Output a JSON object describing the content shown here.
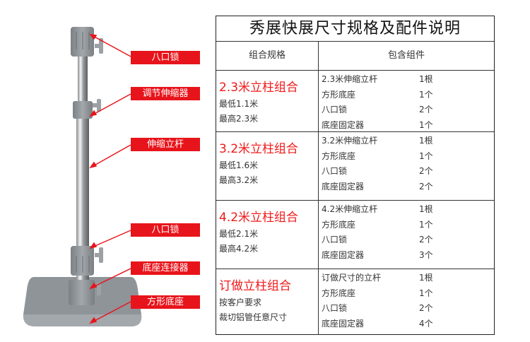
{
  "labels": [
    "八口锁",
    "调节伸缩器",
    "伸缩立杆",
    "八口锁",
    "底座连接器",
    "方形底座"
  ],
  "table": {
    "title": "秀展快展尺寸规格及配件说明",
    "headers": [
      "组合规格",
      "包含组件"
    ],
    "rows": [
      {
        "spec": "2.3米立柱组合",
        "lines": [
          "最低1.1米",
          "最高2.3米"
        ],
        "items": [
          {
            "name": "2.3米伸缩立杆",
            "qty": "1根"
          },
          {
            "name": "方形底座",
            "qty": "1个"
          },
          {
            "name": "八口锁",
            "qty": "2个"
          },
          {
            "name": "底座固定器",
            "qty": "1个"
          }
        ]
      },
      {
        "spec": "3.2米立柱组合",
        "lines": [
          "最低1.6米",
          "最高3.2米"
        ],
        "items": [
          {
            "name": "3.2米伸缩立杆",
            "qty": "1根"
          },
          {
            "name": "方形底座",
            "qty": "1个"
          },
          {
            "name": "八口锁",
            "qty": "2个"
          },
          {
            "name": "底座固定器",
            "qty": "2个"
          }
        ]
      },
      {
        "spec": "4.2米立柱组合",
        "lines": [
          "最低2.1米",
          "最高4.2米"
        ],
        "items": [
          {
            "name": "4.2米伸缩立杆",
            "qty": "1根"
          },
          {
            "name": "方形底座",
            "qty": "1个"
          },
          {
            "name": "八口锁",
            "qty": "2个"
          },
          {
            "name": "底座固定器",
            "qty": "3个"
          }
        ]
      },
      {
        "spec": "订做立柱组合",
        "lines": [
          "按客户要求",
          "裁切铝管任意尺寸"
        ],
        "items": [
          {
            "name": "订做尺寸的立杆",
            "qty": "1根"
          },
          {
            "name": "方形底座",
            "qty": "1个"
          },
          {
            "name": "八口锁",
            "qty": "2个"
          },
          {
            "name": "底座固定器",
            "qty": "4个"
          }
        ]
      }
    ]
  },
  "colors": {
    "accent": "#e8141b",
    "spec_text": "#f01818",
    "part_gray": "#8f9499"
  }
}
